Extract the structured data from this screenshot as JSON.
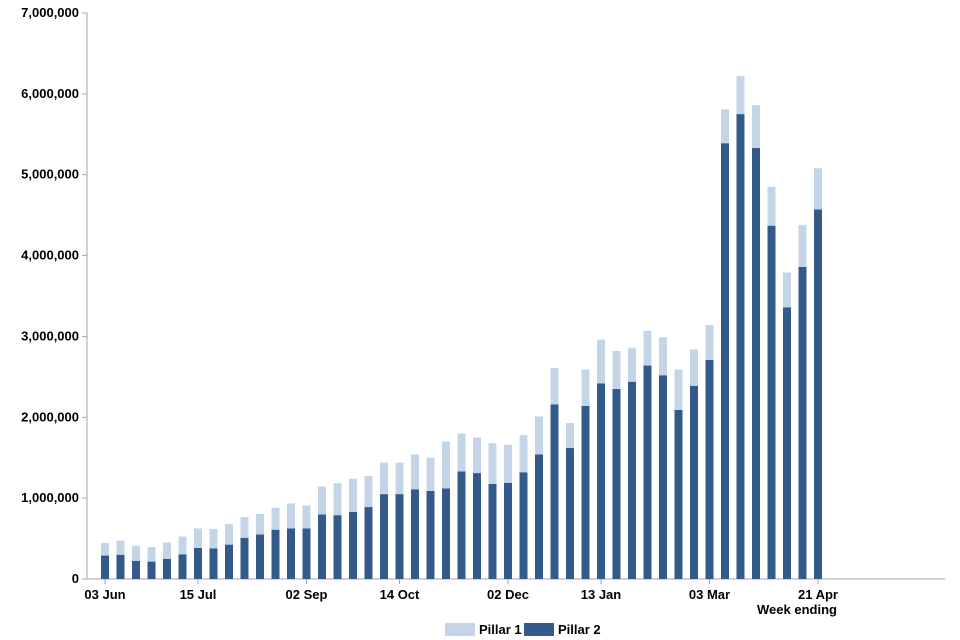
{
  "chart_data": {
    "type": "bar",
    "stacked": true,
    "xlabel": "Week ending",
    "ylabel": "",
    "ylim": [
      0,
      7000000
    ],
    "y_ticks": [
      0,
      1000000,
      2000000,
      3000000,
      4000000,
      5000000,
      6000000,
      7000000
    ],
    "y_tick_labels": [
      "0",
      "1,000,000",
      "2,000,000",
      "3,000,000",
      "4,000,000",
      "5,000,000",
      "6,000,000",
      "7,000,000"
    ],
    "x_tick_labels": [
      {
        "index": 0,
        "label": "03 Jun"
      },
      {
        "index": 6,
        "label": "15 Jul"
      },
      {
        "index": 13,
        "label": "02 Sep"
      },
      {
        "index": 19,
        "label": "14 Oct"
      },
      {
        "index": 26,
        "label": "02 Dec"
      },
      {
        "index": 32,
        "label": "13 Jan"
      },
      {
        "index": 39,
        "label": "03 Mar"
      },
      {
        "index": 46,
        "label": "21 Apr"
      }
    ],
    "grid": false,
    "legend_position": "bottom",
    "colors": {
      "pillar1": "#c5d5e8",
      "pillar2": "#345a8a"
    },
    "series": [
      {
        "name": "Pillar 2",
        "values": [
          290000,
          300000,
          225000,
          215000,
          250000,
          305000,
          385000,
          380000,
          425000,
          510000,
          550000,
          610000,
          625000,
          625000,
          800000,
          790000,
          830000,
          890000,
          1050000,
          1050000,
          1110000,
          1090000,
          1120000,
          1330000,
          1310000,
          1175000,
          1190000,
          1320000,
          1540000,
          2160000,
          1620000,
          2140000,
          2420000,
          2350000,
          2440000,
          2640000,
          2520000,
          2090000,
          2390000,
          2710000,
          5390000,
          5750000,
          5330000,
          4370000,
          3360000,
          3860000,
          4570000
        ]
      },
      {
        "name": "Pillar 1",
        "values": [
          155000,
          175000,
          185000,
          180000,
          200000,
          220000,
          240000,
          240000,
          255000,
          255000,
          255000,
          270000,
          310000,
          285000,
          345000,
          395000,
          410000,
          385000,
          390000,
          390000,
          430000,
          410000,
          580000,
          470000,
          440000,
          505000,
          470000,
          460000,
          470000,
          450000,
          310000,
          450000,
          540000,
          470000,
          420000,
          430000,
          470000,
          500000,
          450000,
          430000,
          420000,
          470000,
          530000,
          480000,
          430000,
          520000,
          510000
        ]
      }
    ]
  }
}
